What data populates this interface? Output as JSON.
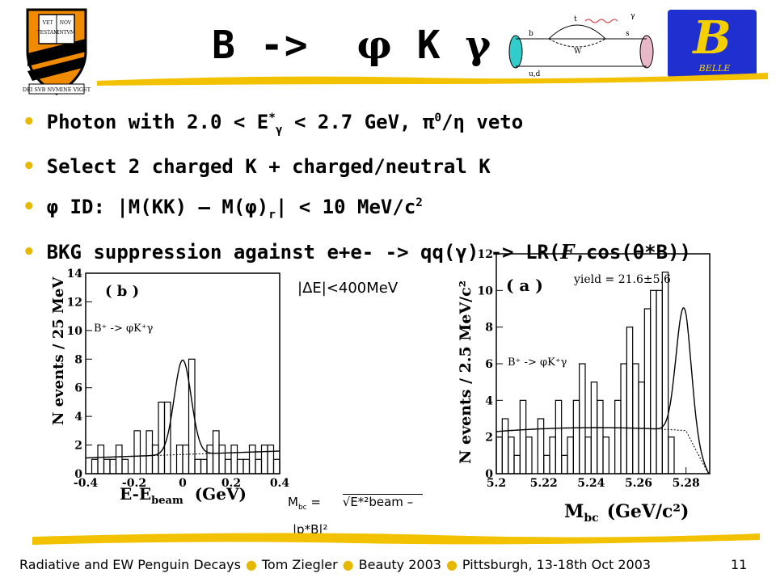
{
  "title": {
    "prefix": "B ->",
    "phi": "φ",
    "K": "K",
    "gamma": "γ"
  },
  "bullets": [
    "Photon with 2.0 < E*γ < 2.7 GeV, π0/η veto",
    "Select 2 charged K + charged/neutral K",
    "φ ID: |M(KK) – M(φ)r| < 10 MeV/c2",
    "BKG suppression against e+e- -> qq(γ) -> LR(F,cos(θ*B))"
  ],
  "logos": {
    "belle_text": "BELLE",
    "shield_lines": [
      "VET",
      "NOV",
      "TESTAM",
      "ENTVM"
    ],
    "shield_motto": "DEI SVB NVMINE VIGET"
  },
  "feynman": {
    "labels": [
      "b",
      "s",
      "γ",
      "t",
      "W",
      "u,d"
    ]
  },
  "plot_b": {
    "label": "( b )",
    "process": "B⁺ -> φK⁺γ",
    "xlabel": "E-E",
    "xlabel_sub": "beam",
    "xlabel_unit": "(GeV)",
    "ylabel": "N events / 25 MeV",
    "xticks": [
      "-0.4",
      "-0.2",
      "0",
      "0.2",
      "0.4"
    ],
    "yticks": [
      "0",
      "2",
      "4",
      "6",
      "8",
      "10",
      "12",
      "14"
    ]
  },
  "plot_a": {
    "label": "( a )",
    "process": "B⁺ -> φK⁺γ",
    "yield": "yield = 21.6±5.6",
    "xlabel": "M",
    "xlabel_sub": "bc",
    "xlabel_unit": "(GeV/c²)",
    "ylabel": "N events / 2.5 MeV/c²",
    "xticks": [
      "5.2",
      "5.22",
      "5.24",
      "5.26",
      "5.28"
    ],
    "yticks": [
      "0",
      "2",
      "4",
      "6",
      "8",
      "10",
      "12"
    ]
  },
  "cut_label": "|ΔE|<400MeV",
  "mbc_formula": {
    "lhs": "M",
    "lhs_sub": "bc",
    "eq": "=",
    "rhs": "√E*²beam –",
    "rhs2": "|p*B|²"
  },
  "chart_data": [
    {
      "type": "bar",
      "title": "( b )",
      "xlabel": "E-Ebeam (GeV)",
      "ylabel": "N events / 25 MeV",
      "xlim": [
        -0.4,
        0.4
      ],
      "ylim": [
        0,
        14
      ],
      "bin_width": 0.025,
      "x_start": -0.375,
      "values": [
        1,
        2,
        1,
        1,
        2,
        1,
        0,
        3,
        0,
        3,
        2,
        5,
        5,
        0,
        2,
        2,
        8,
        1,
        1,
        2,
        3,
        2,
        1,
        2,
        1,
        1,
        2,
        1,
        2,
        2,
        1,
        0
      ]
    },
    {
      "type": "bar",
      "title": "( a )",
      "xlabel": "Mbc (GeV/c²)",
      "ylabel": "N events / 2.5 MeV/c²",
      "xlim": [
        5.2,
        5.29
      ],
      "ylim": [
        0,
        12
      ],
      "bin_width": 0.0025,
      "x_start": 5.2,
      "values": [
        2,
        3,
        2,
        1,
        4,
        2,
        0,
        3,
        1,
        2,
        4,
        1,
        2,
        4,
        6,
        2,
        5,
        4,
        2,
        0,
        4,
        6,
        8,
        6,
        5,
        9,
        10,
        10,
        11,
        2,
        0
      ]
    }
  ],
  "footer": {
    "talk": "Radiative and EW Penguin Decays",
    "author": "Tom Ziegler",
    "conference": "Beauty 2003",
    "place": "Pittsburgh, 13-18th Oct 2003",
    "page": "11"
  }
}
